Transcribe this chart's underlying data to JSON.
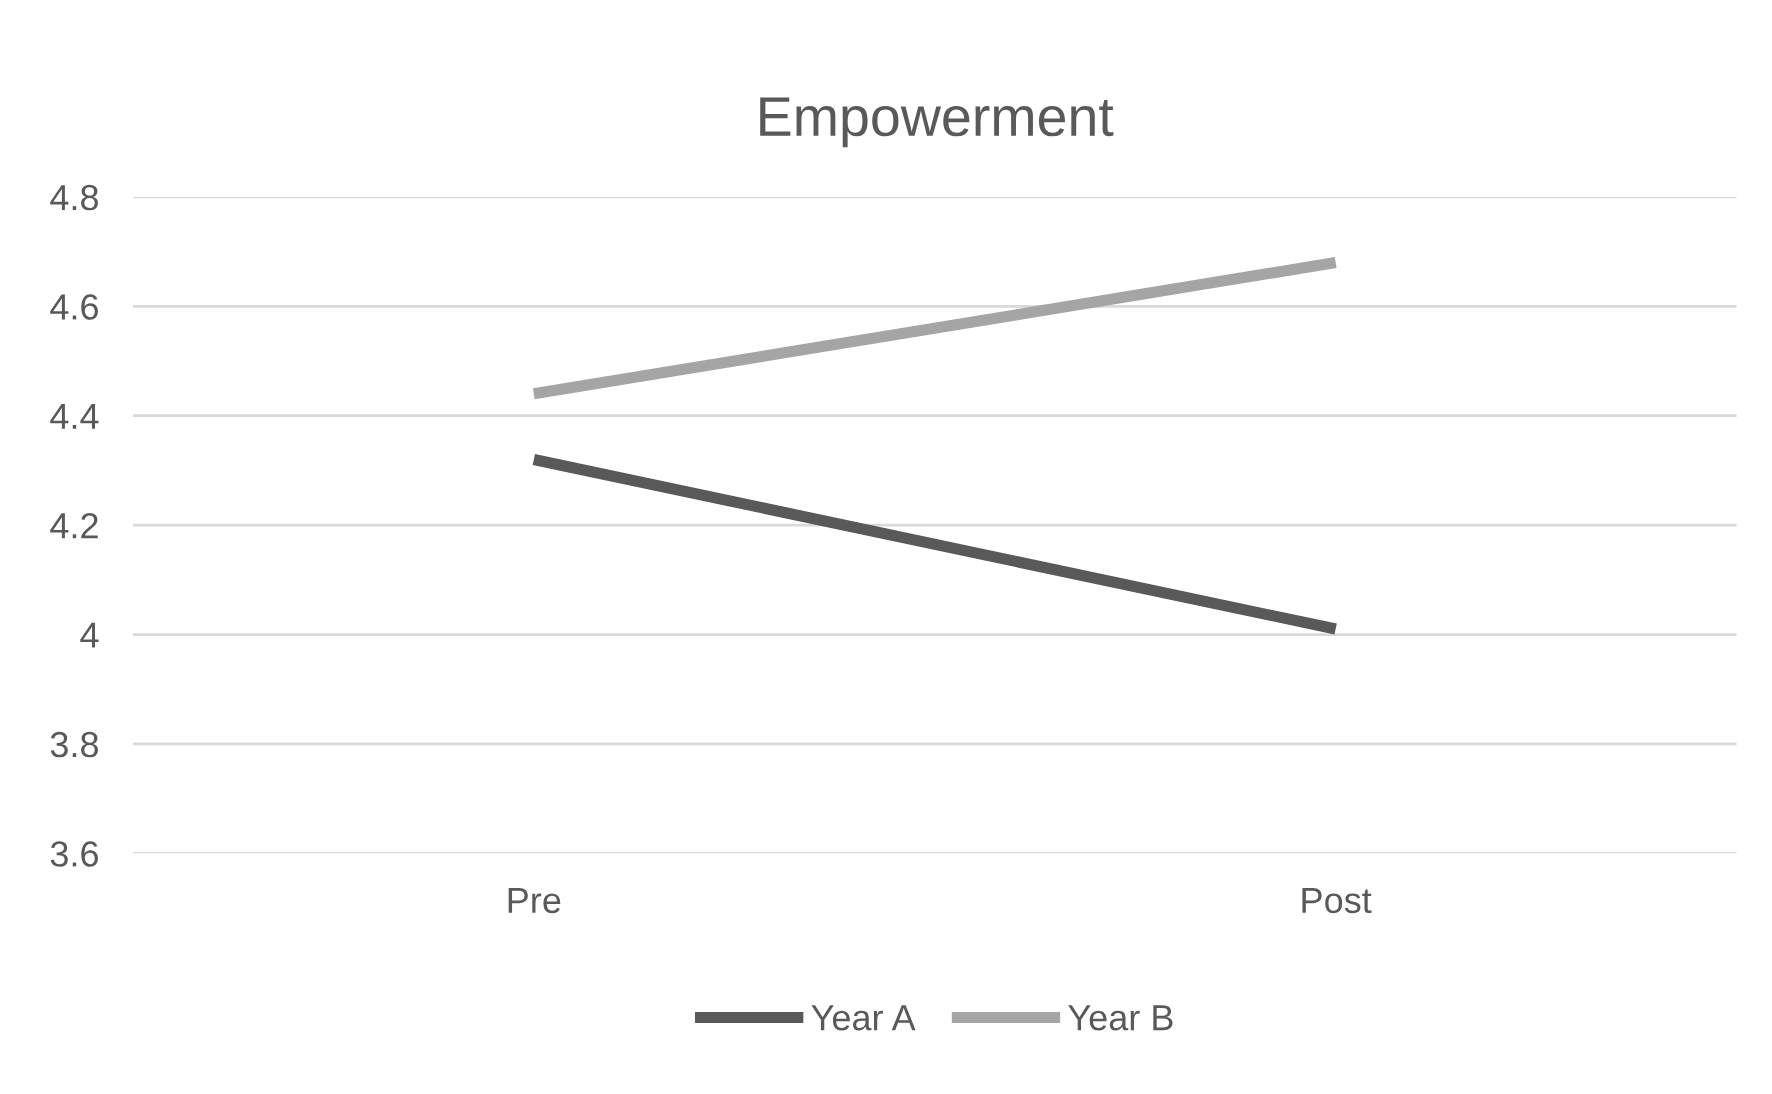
{
  "chart_data": {
    "type": "line",
    "title": "Empowerment",
    "categories": [
      "Pre",
      "Post"
    ],
    "series": [
      {
        "name": "Year A",
        "color": "#595959",
        "values": [
          4.32,
          4.01
        ]
      },
      {
        "name": "Year B",
        "color": "#a5a5a5",
        "values": [
          4.44,
          4.68
        ]
      }
    ],
    "ylim": [
      3.6,
      4.8
    ],
    "yticks": [
      3.6,
      3.8,
      4,
      4.2,
      4.4,
      4.6,
      4.8
    ],
    "grid": "y",
    "legend": "bottom",
    "marker": "none",
    "line_style": "solid"
  }
}
